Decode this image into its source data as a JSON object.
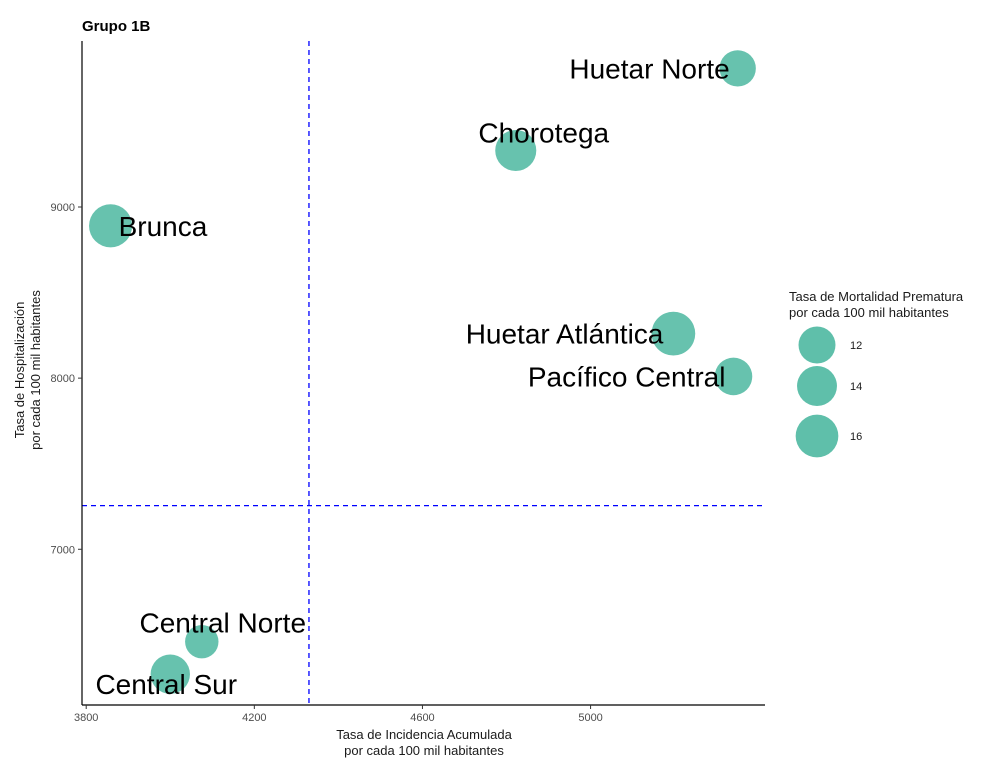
{
  "chart_data": {
    "type": "scatter",
    "title": "Grupo 1B",
    "xlabel": [
      "Tasa de Incidencia Acumulada",
      "por cada 100 mil habitantes"
    ],
    "ylabel": [
      "Tasa de Hospitalización",
      "por cada 100 mil habitantes"
    ],
    "xlim": [
      3790,
      5415
    ],
    "ylim": [
      6090,
      9970
    ],
    "x_ticks": [
      3800,
      4200,
      4600,
      5000
    ],
    "y_ticks": [
      7000,
      8000,
      9000
    ],
    "x_tick_labels": [
      "3800",
      "4200",
      "4600",
      "5000"
    ],
    "y_tick_labels": [
      "7000",
      "8000",
      "9000"
    ],
    "vline_x": 4330,
    "hline_y": 7255,
    "point_color": "#5fbfaa",
    "reference_line_color": "#0000ff",
    "points": [
      {
        "label": "Huetar Norte",
        "x": 5350,
        "y": 9810,
        "size": 11.6
      },
      {
        "label": "Chorotega",
        "x": 4822,
        "y": 9330,
        "size": 14.8
      },
      {
        "label": "Brunca",
        "x": 3858,
        "y": 8890,
        "size": 16.3
      },
      {
        "label": "Huetar Atlántica",
        "x": 5197,
        "y": 8260,
        "size": 16.8
      },
      {
        "label": "Pacífico Central",
        "x": 5340,
        "y": 8010,
        "size": 12.4
      },
      {
        "label": "Central Norte",
        "x": 4075,
        "y": 6460,
        "size": 9.8
      },
      {
        "label": "Central Sur",
        "x": 4000,
        "y": 6270,
        "size": 13.6
      }
    ],
    "legend": {
      "title": [
        "Tasa de Mortalidad Prematura",
        "por cada 100 mil habitantes"
      ],
      "placement": "right",
      "entries": [
        {
          "label": "12",
          "size": 12
        },
        {
          "label": "14",
          "size": 14
        },
        {
          "label": "16",
          "size": 16
        }
      ]
    }
  }
}
